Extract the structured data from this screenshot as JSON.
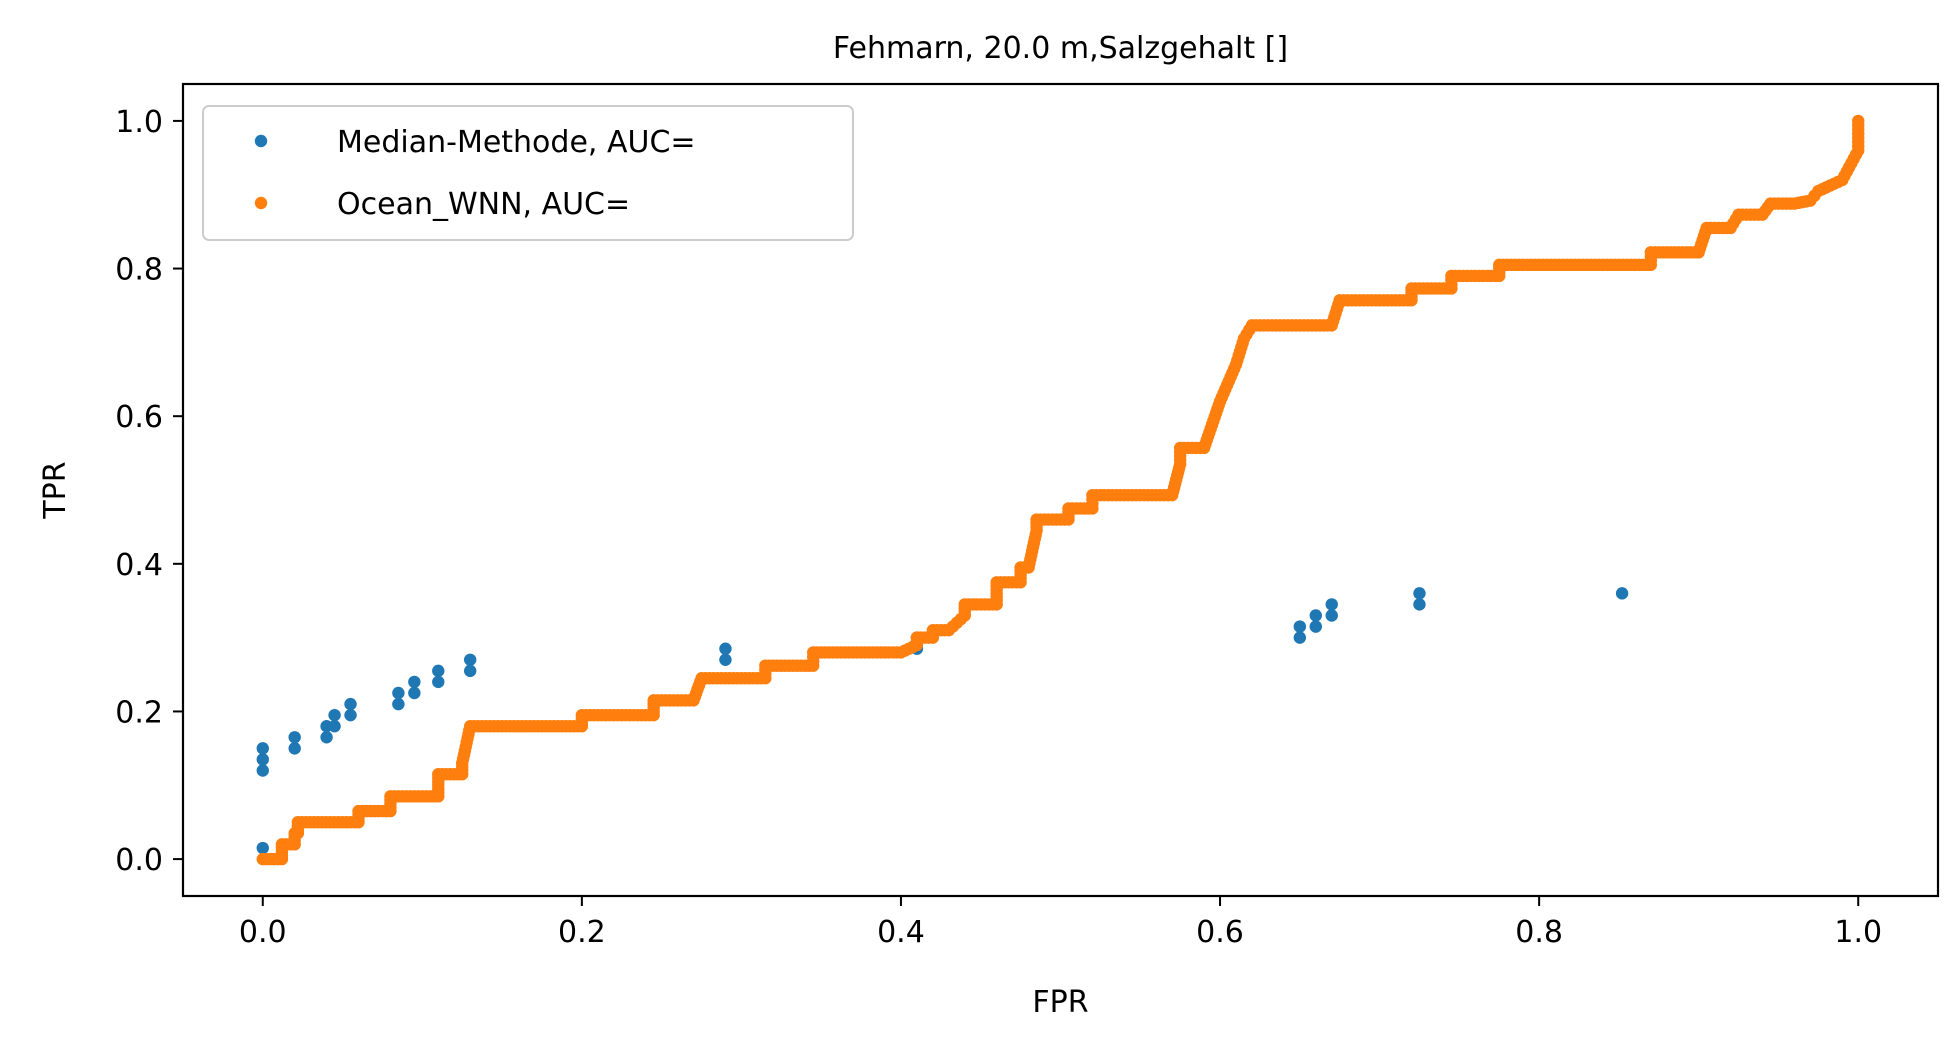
{
  "chart_data": {
    "type": "scatter",
    "title": "Fehmarn, 20.0 m,Salzgehalt []",
    "xlabel": "FPR",
    "ylabel": "TPR",
    "xlim": [
      -0.05,
      1.05
    ],
    "ylim": [
      -0.05,
      1.05
    ],
    "xticks": [
      "0.0",
      "0.2",
      "0.4",
      "0.6",
      "0.8",
      "1.0"
    ],
    "yticks": [
      "0.0",
      "0.2",
      "0.4",
      "0.6",
      "0.8",
      "1.0"
    ],
    "grid": false,
    "legend_position": "upper-left",
    "series": [
      {
        "name": "Median-Methode, AUC=",
        "color": "#1f77b4",
        "points": [
          [
            0.0,
            0.015
          ],
          [
            0.0,
            0.12
          ],
          [
            0.0,
            0.135
          ],
          [
            0.0,
            0.15
          ],
          [
            0.02,
            0.15
          ],
          [
            0.02,
            0.165
          ],
          [
            0.04,
            0.165
          ],
          [
            0.04,
            0.18
          ],
          [
            0.045,
            0.18
          ],
          [
            0.045,
            0.195
          ],
          [
            0.055,
            0.195
          ],
          [
            0.055,
            0.21
          ],
          [
            0.085,
            0.21
          ],
          [
            0.085,
            0.225
          ],
          [
            0.095,
            0.225
          ],
          [
            0.095,
            0.24
          ],
          [
            0.11,
            0.24
          ],
          [
            0.11,
            0.255
          ],
          [
            0.13,
            0.255
          ],
          [
            0.13,
            0.27
          ],
          [
            0.29,
            0.27
          ],
          [
            0.29,
            0.285
          ],
          [
            0.41,
            0.285
          ],
          [
            0.41,
            0.3
          ],
          [
            0.65,
            0.3
          ],
          [
            0.65,
            0.315
          ],
          [
            0.66,
            0.315
          ],
          [
            0.66,
            0.33
          ],
          [
            0.67,
            0.33
          ],
          [
            0.67,
            0.345
          ],
          [
            0.725,
            0.345
          ],
          [
            0.725,
            0.36
          ],
          [
            0.852,
            0.36
          ]
        ]
      },
      {
        "name": "Ocean_WNN, AUC=",
        "color": "#ff7f0e",
        "steps": [
          [
            0.0,
            0.0
          ],
          [
            0.012,
            0.0
          ],
          [
            0.012,
            0.02
          ],
          [
            0.02,
            0.02
          ],
          [
            0.02,
            0.035
          ],
          [
            0.022,
            0.035
          ],
          [
            0.022,
            0.05
          ],
          [
            0.06,
            0.05
          ],
          [
            0.06,
            0.065
          ],
          [
            0.08,
            0.065
          ],
          [
            0.08,
            0.085
          ],
          [
            0.11,
            0.085
          ],
          [
            0.11,
            0.115
          ],
          [
            0.125,
            0.115
          ],
          [
            0.125,
            0.13
          ],
          [
            0.13,
            0.18
          ],
          [
            0.2,
            0.18
          ],
          [
            0.2,
            0.195
          ],
          [
            0.245,
            0.195
          ],
          [
            0.245,
            0.215
          ],
          [
            0.27,
            0.215
          ],
          [
            0.275,
            0.245
          ],
          [
            0.315,
            0.245
          ],
          [
            0.315,
            0.262
          ],
          [
            0.345,
            0.262
          ],
          [
            0.345,
            0.28
          ],
          [
            0.4,
            0.28
          ],
          [
            0.41,
            0.29
          ],
          [
            0.41,
            0.3
          ],
          [
            0.42,
            0.3
          ],
          [
            0.42,
            0.31
          ],
          [
            0.43,
            0.31
          ],
          [
            0.44,
            0.33
          ],
          [
            0.44,
            0.345
          ],
          [
            0.46,
            0.345
          ],
          [
            0.46,
            0.375
          ],
          [
            0.475,
            0.375
          ],
          [
            0.475,
            0.395
          ],
          [
            0.48,
            0.395
          ],
          [
            0.485,
            0.445
          ],
          [
            0.485,
            0.46
          ],
          [
            0.505,
            0.46
          ],
          [
            0.505,
            0.475
          ],
          [
            0.52,
            0.475
          ],
          [
            0.52,
            0.493
          ],
          [
            0.57,
            0.493
          ],
          [
            0.575,
            0.535
          ],
          [
            0.575,
            0.557
          ],
          [
            0.59,
            0.557
          ],
          [
            0.6,
            0.62
          ],
          [
            0.61,
            0.67
          ],
          [
            0.615,
            0.705
          ],
          [
            0.62,
            0.723
          ],
          [
            0.67,
            0.723
          ],
          [
            0.675,
            0.757
          ],
          [
            0.72,
            0.757
          ],
          [
            0.72,
            0.773
          ],
          [
            0.745,
            0.773
          ],
          [
            0.745,
            0.79
          ],
          [
            0.775,
            0.79
          ],
          [
            0.775,
            0.805
          ],
          [
            0.87,
            0.805
          ],
          [
            0.87,
            0.822
          ],
          [
            0.9,
            0.822
          ],
          [
            0.905,
            0.855
          ],
          [
            0.92,
            0.855
          ],
          [
            0.925,
            0.873
          ],
          [
            0.94,
            0.873
          ],
          [
            0.945,
            0.888
          ],
          [
            0.96,
            0.888
          ],
          [
            0.97,
            0.892
          ],
          [
            0.975,
            0.905
          ],
          [
            0.99,
            0.92
          ],
          [
            1.0,
            0.96
          ],
          [
            1.0,
            1.0
          ]
        ]
      }
    ]
  }
}
